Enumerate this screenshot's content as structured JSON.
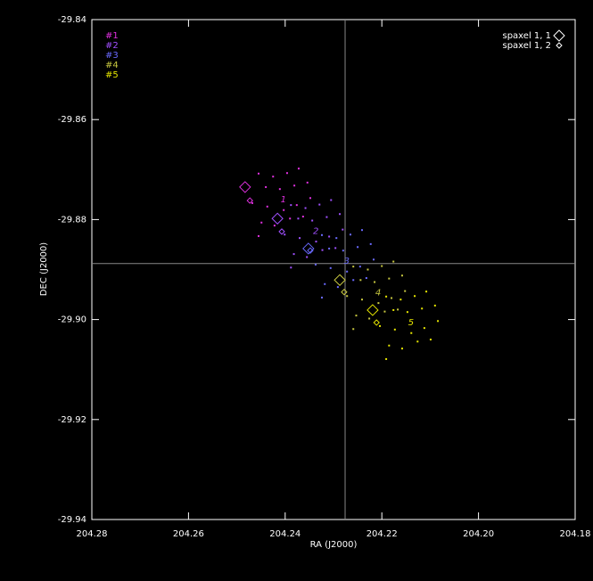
{
  "chart_data": {
    "type": "scatter",
    "x_label": "RA (J2000)",
    "y_label": "DEC (J2000)",
    "xlim": [
      204.28,
      204.18
    ],
    "xticks": [
      204.28,
      204.26,
      204.24,
      204.22,
      {
        "value": 204.2,
        "label": "204.20"
      },
      204.18
    ],
    "ylim": [
      -29.94,
      -29.84
    ],
    "yticks": [
      -29.94,
      -29.92,
      {
        "value": -29.9,
        "label": "-29.90"
      },
      -29.88,
      -29.86,
      -29.84
    ],
    "crosshair": {
      "x": 204.2276,
      "y": -29.8888
    },
    "series": [
      {
        "name": "#1",
        "label": "1",
        "color": "#e030e0",
        "x": [
          204.2455,
          204.2425,
          204.2396,
          204.2372,
          204.244,
          204.2411,
          204.2381,
          204.2354,
          204.2468,
          204.2437,
          204.2403,
          204.2376,
          204.2348,
          204.2449,
          204.2422,
          204.239,
          204.2363,
          204.2455
        ],
        "y": [
          -29.8708,
          -29.8714,
          -29.8707,
          -29.8698,
          -29.8735,
          -29.8739,
          -29.8732,
          -29.8726,
          -29.8767,
          -29.8774,
          -29.8781,
          -29.8771,
          -29.8757,
          -29.8806,
          -29.8812,
          -29.8798,
          -29.8794,
          -29.8833
        ]
      },
      {
        "name": "#2",
        "label": "2",
        "color": "#a050ff",
        "x": [
          204.2388,
          204.2358,
          204.2329,
          204.2305,
          204.2373,
          204.2344,
          204.2314,
          204.2287,
          204.2401,
          204.237,
          204.2336,
          204.2309,
          204.2281,
          204.2382,
          204.2355,
          204.2323,
          204.2296,
          204.2388
        ],
        "y": [
          -29.8771,
          -29.8777,
          -29.877,
          -29.8761,
          -29.8798,
          -29.8802,
          -29.8795,
          -29.8789,
          -29.883,
          -29.8837,
          -29.8844,
          -29.8834,
          -29.882,
          -29.8869,
          -29.8875,
          -29.8861,
          -29.8857,
          -29.8896
        ]
      },
      {
        "name": "#3",
        "label": "3",
        "color": "#6a6aff",
        "x": [
          204.2324,
          204.2294,
          204.2265,
          204.2241,
          204.2309,
          204.228,
          204.225,
          204.2223,
          204.2337,
          204.2306,
          204.2272,
          204.2245,
          204.2217,
          204.2318,
          204.2291,
          204.2259,
          204.2232,
          204.2324
        ],
        "y": [
          -29.8831,
          -29.8837,
          -29.883,
          -29.8821,
          -29.8858,
          -29.8862,
          -29.8855,
          -29.8849,
          -29.889,
          -29.8897,
          -29.8904,
          -29.8894,
          -29.888,
          -29.8929,
          -29.8935,
          -29.8921,
          -29.8917,
          -29.8956
        ]
      },
      {
        "name": "#4",
        "label": "4",
        "color": "#c8c840",
        "x": [
          204.2259,
          204.2229,
          204.22,
          204.2176,
          204.2244,
          204.2215,
          204.2185,
          204.2158,
          204.2272,
          204.2241,
          204.2207,
          204.218,
          204.2152,
          204.2253,
          204.2226,
          204.2194,
          204.2167,
          204.2259
        ],
        "y": [
          -29.8894,
          -29.89,
          -29.8893,
          -29.8884,
          -29.8921,
          -29.8925,
          -29.8918,
          -29.8912,
          -29.8953,
          -29.896,
          -29.8967,
          -29.8957,
          -29.8943,
          -29.8992,
          -29.8998,
          -29.8984,
          -29.898,
          -29.9019
        ]
      },
      {
        "name": "#5",
        "label": "5",
        "color": "#e6e600",
        "x": [
          204.2191,
          204.2161,
          204.2132,
          204.2108,
          204.2176,
          204.2147,
          204.2117,
          204.209,
          204.2204,
          204.2173,
          204.2139,
          204.2112,
          204.2084,
          204.2185,
          204.2158,
          204.2126,
          204.2099,
          204.2191
        ],
        "y": [
          -29.8954,
          -29.896,
          -29.8953,
          -29.8944,
          -29.8981,
          -29.8985,
          -29.8978,
          -29.8972,
          -29.9013,
          -29.902,
          -29.9027,
          -29.9017,
          -29.9003,
          -29.9052,
          -29.9058,
          -29.9044,
          -29.904,
          -29.9079
        ]
      }
    ],
    "markers": [
      {
        "name": "spaxel 1, 1",
        "x": [
          204.2483,
          204.2416,
          204.2352,
          204.2287,
          204.2219
        ],
        "y": [
          -29.8735,
          -29.8798,
          -29.8858,
          -29.8921,
          -29.8981
        ]
      },
      {
        "name": "spaxel 1, 2",
        "x": [
          204.2473,
          204.2407,
          204.2348,
          204.2278,
          204.2211
        ],
        "y": [
          -29.8762,
          -29.8824,
          -29.8862,
          -29.8945,
          -29.9006
        ]
      }
    ]
  }
}
